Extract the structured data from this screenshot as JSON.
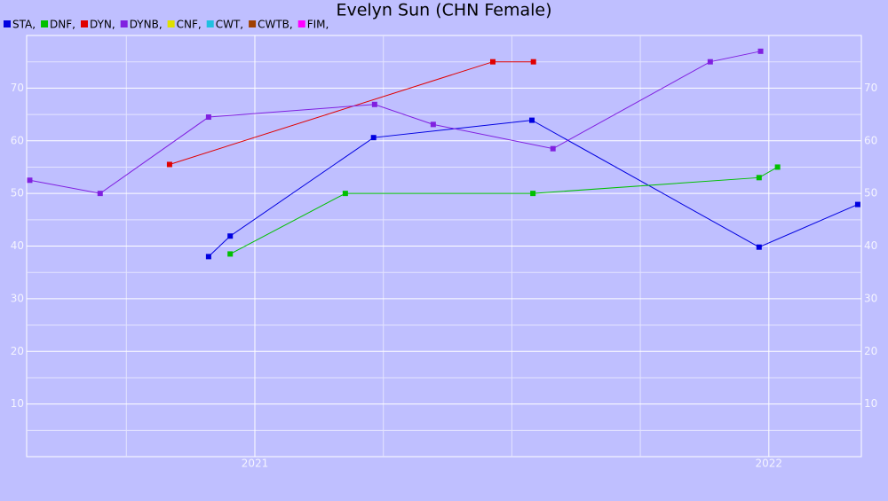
{
  "chart_data": {
    "type": "line",
    "title": "Evelyn Sun (CHN Female)",
    "xlim": [
      2020.556,
      2022.18
    ],
    "xticks": [
      2021,
      2022
    ],
    "x_minor_ticks": [
      2020.75,
      2021.25,
      2021.5,
      2021.75
    ],
    "ylim": [
      0,
      80
    ],
    "yticks": [
      10,
      20,
      30,
      40,
      50,
      60,
      70
    ],
    "y_minor_ticks": [
      5,
      15,
      25,
      35,
      45,
      55,
      65,
      75
    ],
    "grid": true,
    "legend": "top-left",
    "series": [
      {
        "name": "STA,",
        "color": "#0000e0",
        "x": [
          2020.91,
          2020.952,
          2021.231,
          2021.539,
          2021.981,
          2022.173
        ],
        "values": [
          38.0,
          41.9,
          60.6,
          63.9,
          39.8,
          47.9
        ]
      },
      {
        "name": "DNF,",
        "color": "#00c000",
        "x": [
          2020.952,
          2021.176,
          2021.541,
          2021.981,
          2022.017
        ],
        "values": [
          38.5,
          50,
          50,
          53,
          55
        ]
      },
      {
        "name": "DYN,",
        "color": "#e00000",
        "x": [
          2020.834,
          2021.463,
          2021.542
        ],
        "values": [
          55.5,
          75,
          75
        ]
      },
      {
        "name": "DYNB,",
        "color": "#8020e0",
        "x": [
          2020.562,
          2020.699,
          2020.91,
          2021.233,
          2021.347,
          2021.58,
          2021.886,
          2021.984
        ],
        "values": [
          52.5,
          50,
          64.5,
          66.9,
          63.1,
          58.5,
          75,
          77
        ]
      },
      {
        "name": "CNF,",
        "color": "#e0e000",
        "x": [],
        "values": []
      },
      {
        "name": "CWT,",
        "color": "#20c0e0",
        "x": [],
        "values": []
      },
      {
        "name": "CWTB,",
        "color": "#a04000",
        "x": [],
        "values": []
      },
      {
        "name": "FIM,",
        "color": "#ff00ff",
        "x": [],
        "values": []
      }
    ]
  }
}
